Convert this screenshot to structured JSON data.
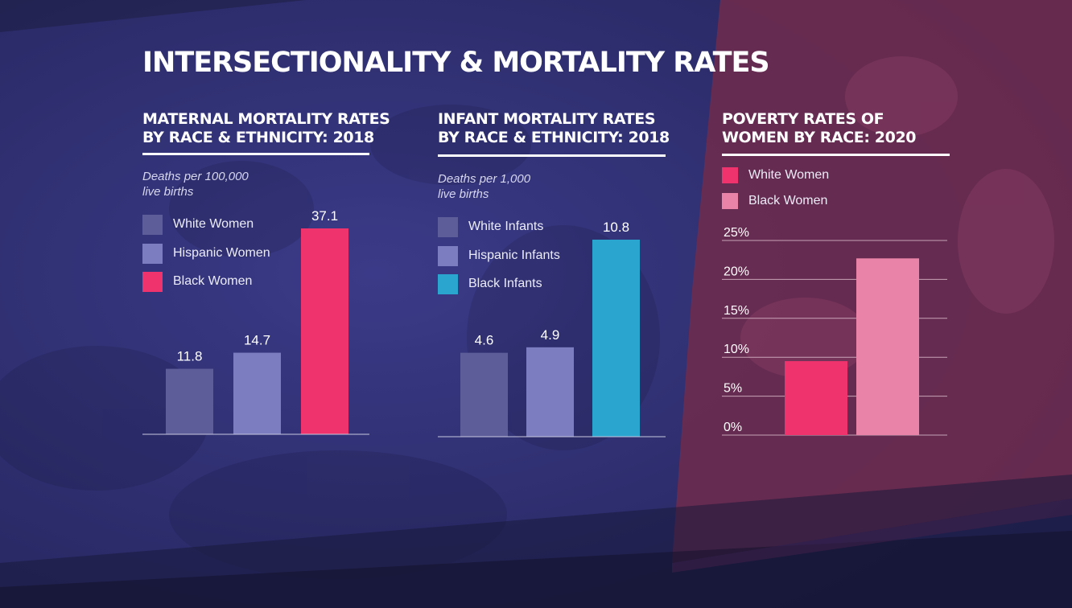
{
  "page": {
    "title": "INTERSECTIONALITY & MORTALITY RATES",
    "colors": {
      "background": "#2f2f6e",
      "overlay_pink": "#6e2b4c",
      "white_women": "#5d5d99",
      "hispanic": "#7c7cc0",
      "black_women": "#ee336d",
      "black_infants": "#2aa5cf",
      "black_women_poverty": "#ea83a8"
    }
  },
  "chart_data": [
    {
      "type": "bar",
      "title_lines": [
        "MATERNAL MORTALITY RATES",
        "BY RACE &  ETHNICITY: 2018"
      ],
      "subtitle_lines": [
        "Deaths per 100,000",
        "live births"
      ],
      "categories": [
        "White Women",
        "Hispanic Women",
        "Black Women"
      ],
      "values": [
        11.8,
        14.7,
        37.1
      ],
      "value_labels": [
        "11.8",
        "14.7",
        "37.1"
      ],
      "colors": [
        "#5d5d99",
        "#7c7cc0",
        "#ee336d"
      ],
      "legend": [
        {
          "label": "White Women",
          "color": "#5d5d99"
        },
        {
          "label": "Hispanic Women",
          "color": "#7c7cc0"
        },
        {
          "label": "Black Women",
          "color": "#ee336d"
        }
      ],
      "ylim": [
        0,
        37.1
      ],
      "grid": false,
      "legend_position": "top-left"
    },
    {
      "type": "bar",
      "title_lines": [
        "INFANT MORTALITY RATES",
        "BY RACE & ETHNICITY: 2018"
      ],
      "subtitle_lines": [
        "Deaths per 1,000",
        "live births"
      ],
      "categories": [
        "White Infants",
        "Hispanic Infants",
        "Black Infants"
      ],
      "values": [
        4.6,
        4.9,
        10.8
      ],
      "value_labels": [
        "4.6",
        "4.9",
        "10.8"
      ],
      "colors": [
        "#5d5d99",
        "#7c7cc0",
        "#2aa5cf"
      ],
      "legend": [
        {
          "label": "White Infants",
          "color": "#5d5d99"
        },
        {
          "label": "Hispanic Infants",
          "color": "#7c7cc0"
        },
        {
          "label": "Black Infants",
          "color": "#2aa5cf"
        }
      ],
      "ylim": [
        0,
        10.8
      ],
      "grid": false,
      "legend_position": "top-left"
    },
    {
      "type": "bar",
      "title_lines": [
        "POVERTY RATES OF",
        "WOMEN BY RACE: 2020"
      ],
      "categories": [
        "White Women",
        "Black Women"
      ],
      "values": [
        9.5,
        22.7
      ],
      "colors": [
        "#ee336d",
        "#ea83a8"
      ],
      "legend": [
        {
          "label": "White Women",
          "color": "#ee336d"
        },
        {
          "label": "Black Women",
          "color": "#ea83a8"
        }
      ],
      "ylim": [
        0,
        25
      ],
      "yticks": [
        0,
        5,
        10,
        15,
        20,
        25
      ],
      "ytick_labels": [
        "0%",
        "5%",
        "10%",
        "15%",
        "20%",
        "25%"
      ],
      "grid": true,
      "legend_position": "top-left"
    }
  ]
}
